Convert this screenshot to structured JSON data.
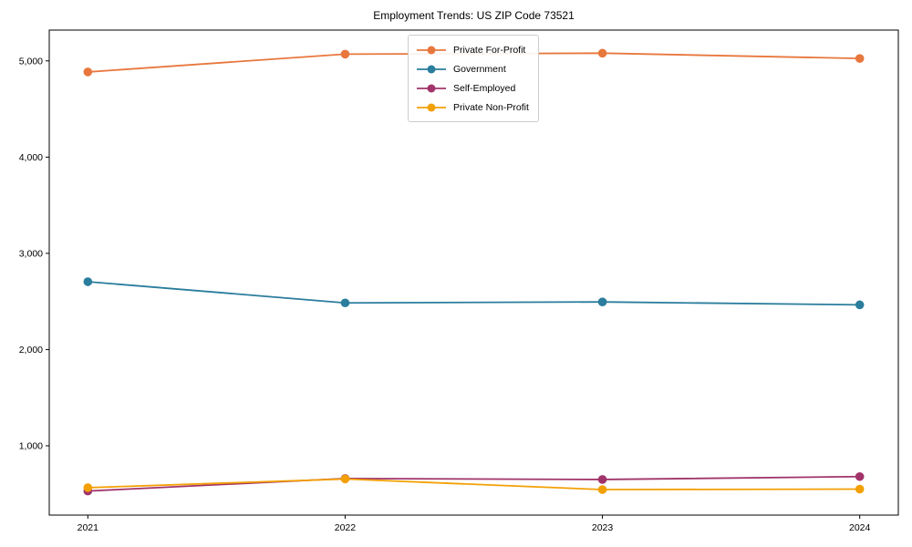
{
  "page": {
    "background": "#ffffff",
    "axis_color": "#000000",
    "legend_border_color": "#cccccc"
  },
  "chart_data": {
    "type": "line",
    "title": "Employment Trends: US ZIP Code 73521",
    "xlabel": "",
    "ylabel": "",
    "x": [
      2021,
      2022,
      2023,
      2024
    ],
    "x_tick_labels": [
      "2021",
      "2022",
      "2023",
      "2024"
    ],
    "y_ticks": [
      1000,
      2000,
      3000,
      4000,
      5000
    ],
    "y_tick_labels": [
      "1,000",
      "2,000",
      "3,000",
      "4,000",
      "5,000"
    ],
    "xlim": [
      2020.85,
      2024.15
    ],
    "ylim": [
      280,
      5320
    ],
    "grid": false,
    "legend_position": "upper center",
    "series": [
      {
        "name": "Private For-Profit",
        "color": "#e8773d",
        "values": [
          4885,
          5070,
          5080,
          5025
        ]
      },
      {
        "name": "Government",
        "color": "#2a7d9d",
        "values": [
          2705,
          2485,
          2495,
          2465
        ]
      },
      {
        "name": "Self-Employed",
        "color": "#a0346a",
        "values": [
          530,
          660,
          650,
          680
        ]
      },
      {
        "name": "Private Non-Profit",
        "color": "#f3a006",
        "values": [
          565,
          655,
          545,
          550
        ]
      }
    ]
  }
}
